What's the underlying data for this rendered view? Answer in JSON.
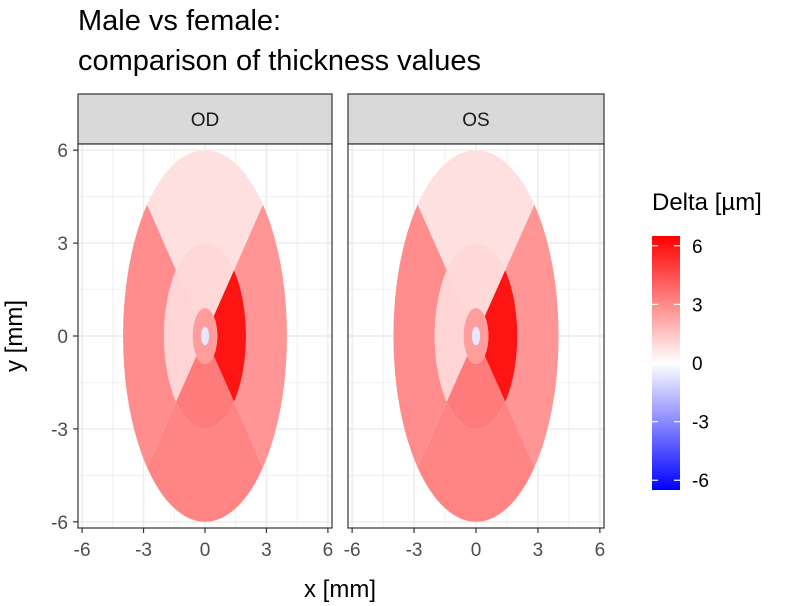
{
  "chart_data": {
    "type": "heatmap",
    "title_lines": [
      "Male vs female:",
      "comparison of thickness values"
    ],
    "xlabel": "x [mm]",
    "ylabel": "y [mm]",
    "xlim": [
      -6.2,
      6.2
    ],
    "ylim": [
      -6.2,
      6.2
    ],
    "x_ticks": [
      "-6",
      "-3",
      "0",
      "3",
      "6"
    ],
    "y_ticks": [
      "6",
      "3",
      "0",
      "-3",
      "-6"
    ],
    "x_tick_values": [
      -6,
      -3,
      0,
      3,
      6
    ],
    "y_tick_values": [
      6,
      3,
      0,
      -3,
      -6
    ],
    "grid": true,
    "legend": {
      "title": "Delta [µm]",
      "position": "right",
      "range": [
        -6.5,
        6.5
      ],
      "ticks": [
        "6",
        "3",
        "0",
        "-3",
        "-6"
      ],
      "tick_values": [
        6,
        3,
        0,
        -3,
        -6
      ],
      "colors": {
        "low": "#0000ff",
        "mid": "#ffffff",
        "high": "#ff0000"
      }
    },
    "grid_shape": "ETDRS ellipse",
    "zone_radii_mm": {
      "center": 0.9,
      "inner": 3.0,
      "outer": 6.0
    },
    "ellipse_aspect_x": 0.667,
    "panels": [
      {
        "name": "OD",
        "center": 2.5,
        "inner": {
          "superior": 1.0,
          "temporal": 6.0,
          "inferior": 3.4,
          "nasal": 1.1
        },
        "outer": {
          "superior": 0.8,
          "temporal": 2.7,
          "inferior": 3.1,
          "nasal": 2.9
        },
        "fovea": -0.6
      },
      {
        "name": "OS",
        "center": 2.5,
        "inner": {
          "superior": 1.0,
          "temporal": 1.1,
          "inferior": 3.4,
          "nasal": 6.0
        },
        "outer": {
          "superior": 0.8,
          "temporal": 2.9,
          "inferior": 3.1,
          "nasal": 2.7
        },
        "fovea": -0.6
      }
    ]
  }
}
